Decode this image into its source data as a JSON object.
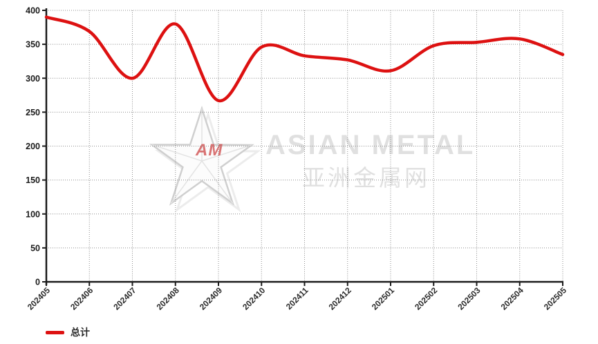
{
  "chart_data": {
    "type": "line",
    "title": "",
    "xlabel": "",
    "ylabel": "",
    "categories": [
      "202405",
      "202406",
      "202407",
      "202408",
      "202409",
      "202410",
      "202411",
      "202412",
      "202501",
      "202502",
      "202503",
      "202504",
      "202505"
    ],
    "series": [
      {
        "name": "总计",
        "color": "#dd1111",
        "values": [
          390,
          369,
          300,
          380,
          267,
          346,
          333,
          327,
          311,
          348,
          353,
          358,
          335
        ]
      }
    ],
    "ylim": [
      0,
      400
    ],
    "y_ticks": [
      0,
      50,
      100,
      150,
      200,
      250,
      300,
      350,
      400
    ],
    "grid": true,
    "grid_style": "dotted",
    "legend_position": "bottom-left"
  },
  "watermark": {
    "logo_initials": "AM",
    "brand_en": "ASIAN METAL",
    "brand_cn": "亚洲金属网"
  },
  "legend": {
    "items": [
      {
        "label": "总计",
        "color": "#dd1111"
      }
    ]
  },
  "colors": {
    "line": "#dd1111",
    "axis": "#1a1a1a",
    "grid": "#8c8c8c",
    "y_tick_label": "#1a1a1a",
    "x_tick_label": "#2b2b2b",
    "background": "#ffffff"
  }
}
